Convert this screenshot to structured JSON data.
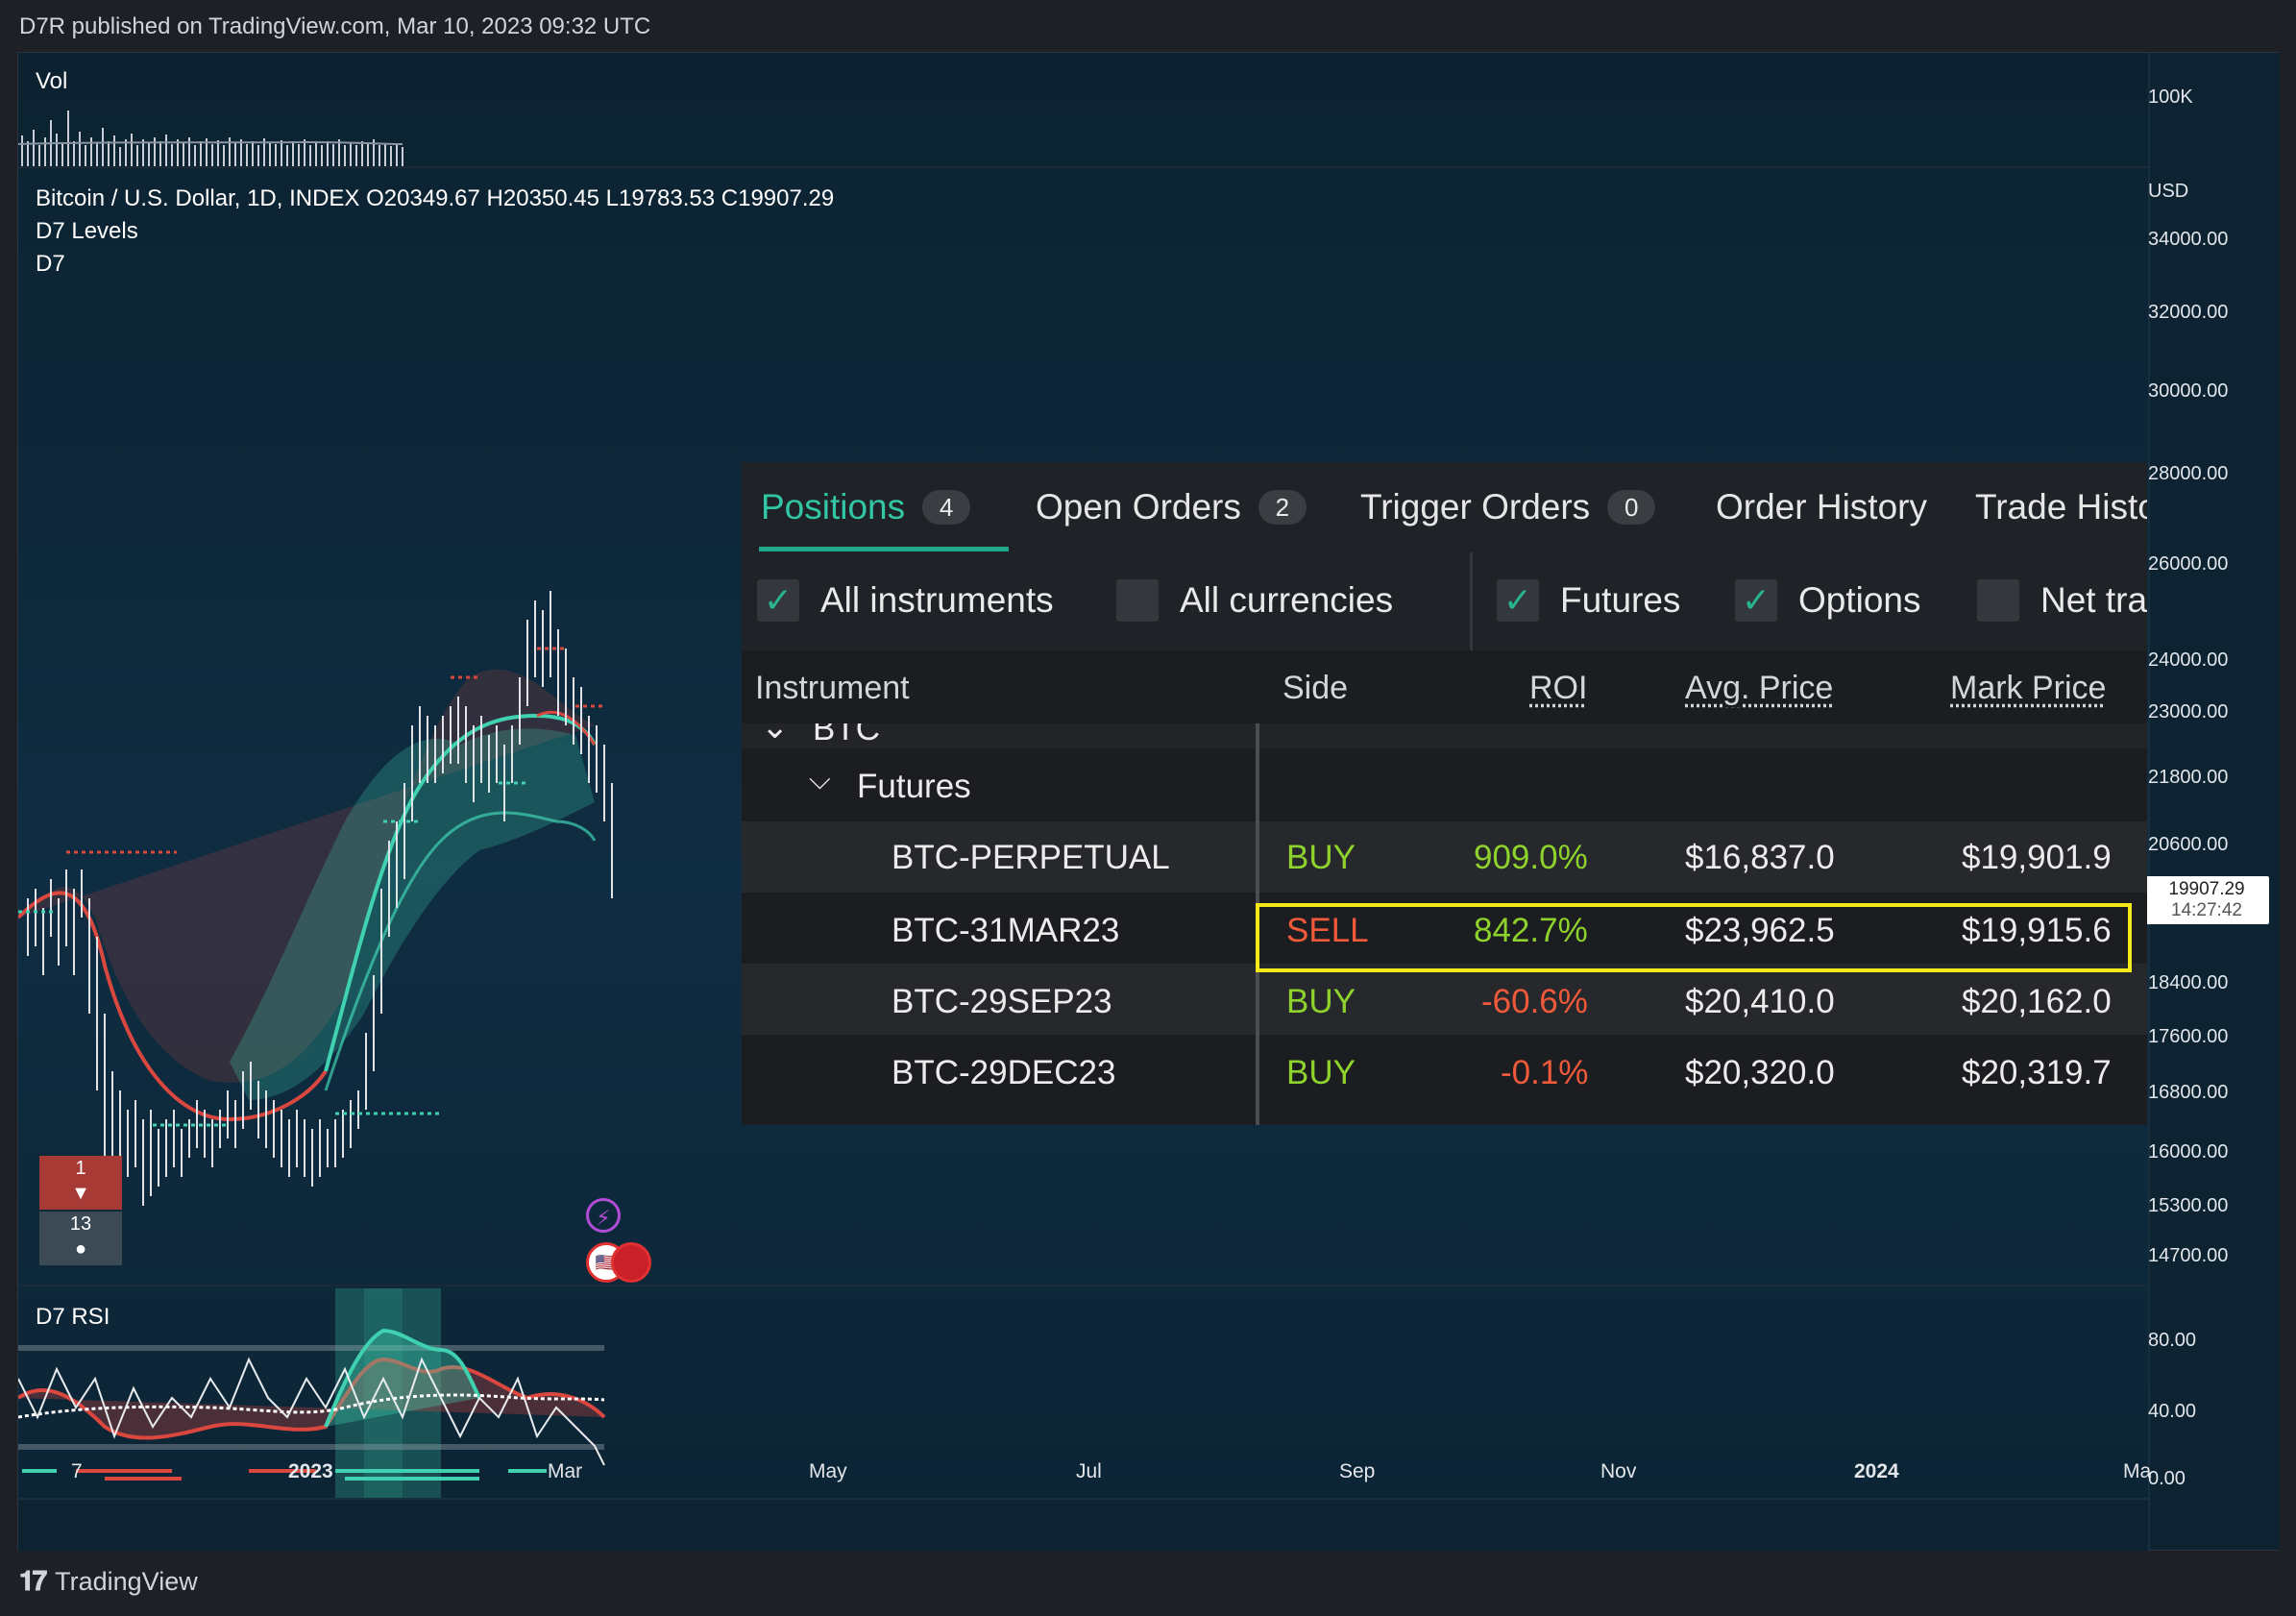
{
  "header": {
    "published": "D7R published on TradingView.com, Mar 10, 2023 09:32 UTC"
  },
  "footer": {
    "brand": "TradingView"
  },
  "chart": {
    "volume_label": "Vol",
    "volume_axis": "100K",
    "symbol_line": "Bitcoin / U.S. Dollar, 1D, INDEX   O20349.67   H20350.45   L19783.53   C19907.29",
    "indicator1": "D7 Levels",
    "indicator2": "D7",
    "currency": "USD",
    "price_levels": [
      "34000.00",
      "32000.00",
      "30000.00",
      "28000.00",
      "26000.00",
      "24000.00",
      "23000.00",
      "21800.00",
      "20600.00",
      "18400.00",
      "17600.00",
      "16800.00",
      "16000.00",
      "15300.00",
      "14700.00"
    ],
    "last_price": "19907.29",
    "countdown": "14:27:42",
    "marker_top": "1",
    "marker_bottom": "13",
    "rsi_label": "D7 RSI",
    "rsi_levels": [
      "80.00",
      "40.00",
      "0.00"
    ],
    "time_labels": [
      "7",
      "2023",
      "Mar",
      "May",
      "Jul",
      "Sep",
      "Nov",
      "2024",
      "Ma"
    ],
    "colors": {
      "bull": "#3fd1b0",
      "bear": "#d9473f"
    }
  },
  "panel": {
    "tabs": [
      {
        "label": "Positions",
        "count": "4"
      },
      {
        "label": "Open Orders",
        "count": "2"
      },
      {
        "label": "Trigger Orders",
        "count": "0"
      },
      {
        "label": "Order History"
      },
      {
        "label": "Trade Histo"
      }
    ],
    "filters": [
      {
        "label": "All instruments",
        "checked": true
      },
      {
        "label": "All currencies",
        "checked": false
      },
      {
        "label": "Futures",
        "checked": true
      },
      {
        "label": "Options",
        "checked": true
      },
      {
        "label": "Net tra",
        "checked": false
      }
    ],
    "columns": {
      "instrument": "Instrument",
      "side": "Side",
      "roi": "ROI",
      "avg": "Avg. Price",
      "mark": "Mark Price"
    },
    "group": "BTC",
    "subgroup": "Futures",
    "rows": [
      {
        "instrument": "BTC-PERPETUAL",
        "side": "BUY",
        "roi": "909.0%",
        "avg": "$16,837.0",
        "mark": "$19,901.9"
      },
      {
        "instrument": "BTC-31MAR23",
        "side": "SELL",
        "roi": "842.7%",
        "avg": "$23,962.5",
        "mark": "$19,915.6"
      },
      {
        "instrument": "BTC-29SEP23",
        "side": "BUY",
        "roi": "-60.6%",
        "avg": "$20,410.0",
        "mark": "$20,162.0"
      },
      {
        "instrument": "BTC-29DEC23",
        "side": "BUY",
        "roi": "-0.1%",
        "avg": "$20,320.0",
        "mark": "$20,319.7"
      }
    ]
  }
}
